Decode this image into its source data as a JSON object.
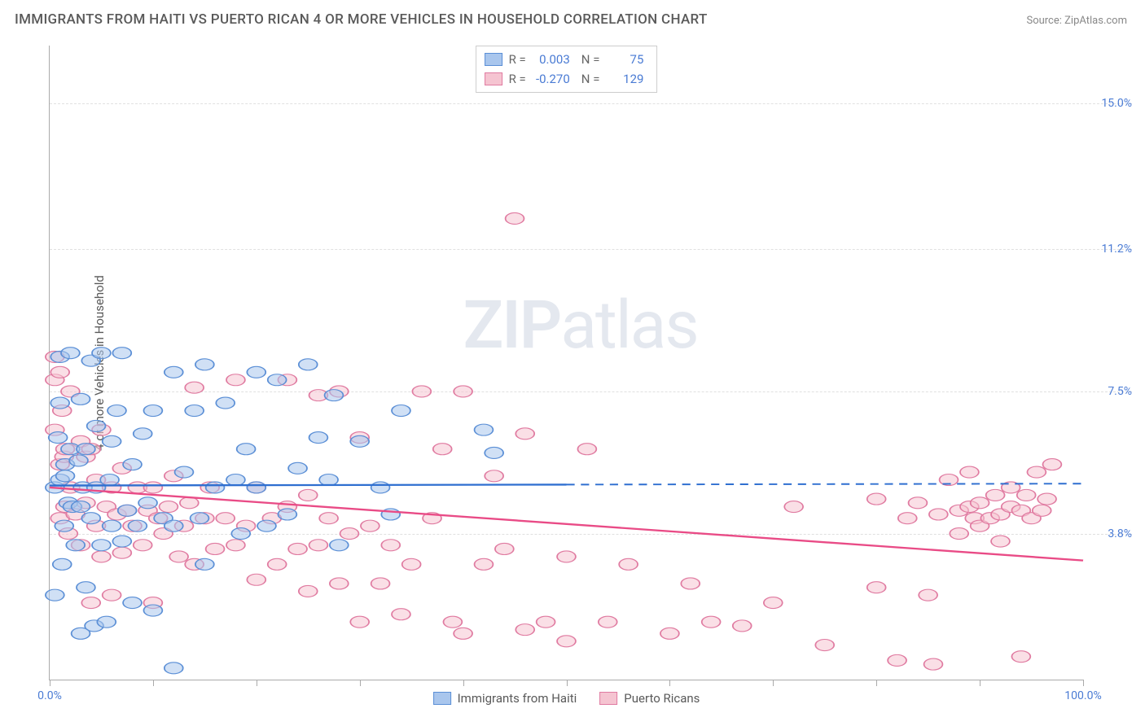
{
  "title": "IMMIGRANTS FROM HAITI VS PUERTO RICAN 4 OR MORE VEHICLES IN HOUSEHOLD CORRELATION CHART",
  "source": "Source: ZipAtlas.com",
  "y_axis_label": "4 or more Vehicles in Household",
  "watermark": {
    "bold": "ZIP",
    "rest": "atlas"
  },
  "chart": {
    "type": "scatter",
    "background_color": "#ffffff",
    "grid_color": "#e0e0e0",
    "axis_color": "#aaaaaa",
    "xlim": [
      0,
      100
    ],
    "ylim": [
      0,
      16.5
    ],
    "x_ticks_positions": [
      0,
      10,
      20,
      30,
      40,
      50,
      60,
      70,
      80,
      90,
      100
    ],
    "x_tick_labels": {
      "0": "0.0%",
      "100": "100.0%"
    },
    "y_gridlines": [
      3.8,
      7.5,
      11.2,
      15.0
    ],
    "y_tick_labels": [
      "3.8%",
      "7.5%",
      "11.2%",
      "15.0%"
    ],
    "label_color": "#4a7bd4",
    "label_fontsize": 14,
    "marker_radius": 9,
    "marker_opacity": 0.55
  },
  "series": {
    "haiti": {
      "label": "Immigrants from Haiti",
      "fill": "#a9c6ed",
      "stroke": "#5b8fd6",
      "R": "0.003",
      "N": "75",
      "trend": {
        "y_start": 5.05,
        "y_end": 5.1,
        "solid_until_x": 50,
        "color": "#2f6fd0"
      },
      "points": [
        [
          0.5,
          2.2
        ],
        [
          0.5,
          5.0
        ],
        [
          0.8,
          6.3
        ],
        [
          1.0,
          5.2
        ],
        [
          1.0,
          7.2
        ],
        [
          1.0,
          8.4
        ],
        [
          1.2,
          3.0
        ],
        [
          1.4,
          4.0
        ],
        [
          1.5,
          5.3
        ],
        [
          1.5,
          5.6
        ],
        [
          1.8,
          4.6
        ],
        [
          2.0,
          6.0
        ],
        [
          2.0,
          8.5
        ],
        [
          2.2,
          4.5
        ],
        [
          2.5,
          3.5
        ],
        [
          2.8,
          5.7
        ],
        [
          3.0,
          1.2
        ],
        [
          3.0,
          4.5
        ],
        [
          3.0,
          7.3
        ],
        [
          3.2,
          5.0
        ],
        [
          3.5,
          2.4
        ],
        [
          3.5,
          6.0
        ],
        [
          4.0,
          4.2
        ],
        [
          4.0,
          8.3
        ],
        [
          4.3,
          1.4
        ],
        [
          4.5,
          5.0
        ],
        [
          4.5,
          6.6
        ],
        [
          5.0,
          3.5
        ],
        [
          5.0,
          8.5
        ],
        [
          5.5,
          1.5
        ],
        [
          5.8,
          5.2
        ],
        [
          6.0,
          4.0
        ],
        [
          6.0,
          6.2
        ],
        [
          6.5,
          7.0
        ],
        [
          7.0,
          3.6
        ],
        [
          7.0,
          8.5
        ],
        [
          7.5,
          4.4
        ],
        [
          8.0,
          2.0
        ],
        [
          8.0,
          5.6
        ],
        [
          8.5,
          4.0
        ],
        [
          9.0,
          6.4
        ],
        [
          9.5,
          4.6
        ],
        [
          10.0,
          1.8
        ],
        [
          10.0,
          7.0
        ],
        [
          11.0,
          4.2
        ],
        [
          12.0,
          4.0
        ],
        [
          12.0,
          8.0
        ],
        [
          12.0,
          0.3
        ],
        [
          13.0,
          5.4
        ],
        [
          14.0,
          7.0
        ],
        [
          14.5,
          4.2
        ],
        [
          15.0,
          3.0
        ],
        [
          15.0,
          8.2
        ],
        [
          16.0,
          5.0
        ],
        [
          17.0,
          7.2
        ],
        [
          18.0,
          5.2
        ],
        [
          18.5,
          3.8
        ],
        [
          19.0,
          6.0
        ],
        [
          20.0,
          8.0
        ],
        [
          20.0,
          5.0
        ],
        [
          21.0,
          4.0
        ],
        [
          22.0,
          7.8
        ],
        [
          23.0,
          4.3
        ],
        [
          24.0,
          5.5
        ],
        [
          25.0,
          8.2
        ],
        [
          26.0,
          6.3
        ],
        [
          27.0,
          5.2
        ],
        [
          27.5,
          7.4
        ],
        [
          28.0,
          3.5
        ],
        [
          30.0,
          6.2
        ],
        [
          32.0,
          5.0
        ],
        [
          33.0,
          4.3
        ],
        [
          34.0,
          7.0
        ],
        [
          42.0,
          6.5
        ],
        [
          43.0,
          5.9
        ]
      ]
    },
    "pr": {
      "label": "Puerto Ricans",
      "fill": "#f5c4d1",
      "stroke": "#e07ba1",
      "R": "-0.270",
      "N": "129",
      "trend": {
        "y_start": 5.0,
        "y_end": 3.1,
        "solid_until_x": 100,
        "color": "#e94b86"
      },
      "points": [
        [
          0.5,
          7.8
        ],
        [
          0.5,
          8.4
        ],
        [
          0.5,
          6.5
        ],
        [
          1.0,
          5.6
        ],
        [
          1.0,
          8.0
        ],
        [
          1.0,
          4.2
        ],
        [
          1.2,
          7.0
        ],
        [
          1.4,
          5.8
        ],
        [
          1.5,
          6.0
        ],
        [
          1.5,
          4.5
        ],
        [
          1.8,
          3.8
        ],
        [
          2.0,
          5.0
        ],
        [
          2.0,
          7.5
        ],
        [
          2.5,
          4.3
        ],
        [
          3.0,
          6.2
        ],
        [
          3.0,
          3.5
        ],
        [
          3.5,
          4.6
        ],
        [
          3.5,
          5.8
        ],
        [
          4.0,
          2.0
        ],
        [
          4.0,
          6.0
        ],
        [
          4.5,
          4.0
        ],
        [
          4.5,
          5.2
        ],
        [
          5.0,
          6.5
        ],
        [
          5.0,
          3.2
        ],
        [
          5.5,
          4.5
        ],
        [
          6.0,
          5.0
        ],
        [
          6.0,
          2.2
        ],
        [
          6.5,
          4.3
        ],
        [
          7.0,
          3.3
        ],
        [
          7.0,
          5.5
        ],
        [
          7.5,
          4.4
        ],
        [
          8.0,
          4.0
        ],
        [
          8.5,
          5.0
        ],
        [
          9.0,
          3.5
        ],
        [
          9.5,
          4.4
        ],
        [
          10.0,
          5.0
        ],
        [
          10.0,
          2.0
        ],
        [
          10.5,
          4.2
        ],
        [
          11.0,
          3.8
        ],
        [
          11.5,
          4.5
        ],
        [
          12.0,
          5.3
        ],
        [
          12.5,
          3.2
        ],
        [
          13.0,
          4.0
        ],
        [
          13.5,
          4.6
        ],
        [
          14.0,
          3.0
        ],
        [
          14.0,
          7.6
        ],
        [
          15.0,
          4.2
        ],
        [
          15.5,
          5.0
        ],
        [
          16.0,
          3.4
        ],
        [
          17.0,
          4.2
        ],
        [
          18.0,
          3.5
        ],
        [
          18.0,
          7.8
        ],
        [
          19.0,
          4.0
        ],
        [
          20.0,
          2.6
        ],
        [
          20.0,
          5.0
        ],
        [
          21.5,
          4.2
        ],
        [
          22.0,
          3.0
        ],
        [
          23.0,
          4.5
        ],
        [
          23.0,
          7.8
        ],
        [
          24.0,
          3.4
        ],
        [
          25.0,
          2.3
        ],
        [
          25.0,
          4.8
        ],
        [
          26.0,
          7.4
        ],
        [
          26.0,
          3.5
        ],
        [
          27.0,
          4.2
        ],
        [
          28.0,
          2.5
        ],
        [
          28.0,
          7.5
        ],
        [
          29.0,
          3.8
        ],
        [
          30.0,
          6.3
        ],
        [
          30.0,
          1.5
        ],
        [
          31.0,
          4.0
        ],
        [
          32.0,
          2.5
        ],
        [
          33.0,
          3.5
        ],
        [
          34.0,
          1.7
        ],
        [
          35.0,
          3.0
        ],
        [
          36.0,
          7.5
        ],
        [
          37.0,
          4.2
        ],
        [
          38.0,
          6.0
        ],
        [
          39.0,
          1.5
        ],
        [
          40.0,
          1.2
        ],
        [
          40.0,
          7.5
        ],
        [
          42.0,
          3.0
        ],
        [
          43.0,
          5.3
        ],
        [
          44.0,
          3.4
        ],
        [
          45.0,
          12.0
        ],
        [
          46.0,
          1.3
        ],
        [
          46.0,
          6.4
        ],
        [
          48.0,
          1.5
        ],
        [
          50.0,
          3.2
        ],
        [
          50.0,
          1.0
        ],
        [
          52.0,
          6.0
        ],
        [
          54.0,
          1.5
        ],
        [
          56.0,
          3.0
        ],
        [
          60.0,
          1.2
        ],
        [
          62.0,
          2.5
        ],
        [
          64.0,
          1.5
        ],
        [
          67.0,
          1.4
        ],
        [
          70.0,
          2.0
        ],
        [
          72.0,
          4.5
        ],
        [
          75.0,
          0.9
        ],
        [
          80.0,
          2.4
        ],
        [
          80.0,
          4.7
        ],
        [
          82.0,
          0.5
        ],
        [
          83.0,
          4.2
        ],
        [
          84.0,
          4.6
        ],
        [
          85.0,
          2.2
        ],
        [
          85.5,
          0.4
        ],
        [
          86.0,
          4.3
        ],
        [
          87.0,
          5.2
        ],
        [
          88.0,
          3.8
        ],
        [
          88.0,
          4.4
        ],
        [
          89.0,
          4.5
        ],
        [
          89.0,
          5.4
        ],
        [
          89.5,
          4.2
        ],
        [
          90.0,
          4.0
        ],
        [
          90.0,
          4.6
        ],
        [
          91.0,
          4.2
        ],
        [
          91.5,
          4.8
        ],
        [
          92.0,
          4.3
        ],
        [
          92.0,
          3.6
        ],
        [
          93.0,
          4.5
        ],
        [
          93.0,
          5.0
        ],
        [
          94.0,
          4.4
        ],
        [
          94.0,
          0.6
        ],
        [
          94.5,
          4.8
        ],
        [
          95.0,
          4.2
        ],
        [
          95.5,
          5.4
        ],
        [
          96.0,
          4.4
        ],
        [
          96.5,
          4.7
        ],
        [
          97.0,
          5.6
        ]
      ]
    }
  },
  "bottom_legend": [
    {
      "key": "haiti",
      "label": "Immigrants from Haiti"
    },
    {
      "key": "pr",
      "label": "Puerto Ricans"
    }
  ]
}
